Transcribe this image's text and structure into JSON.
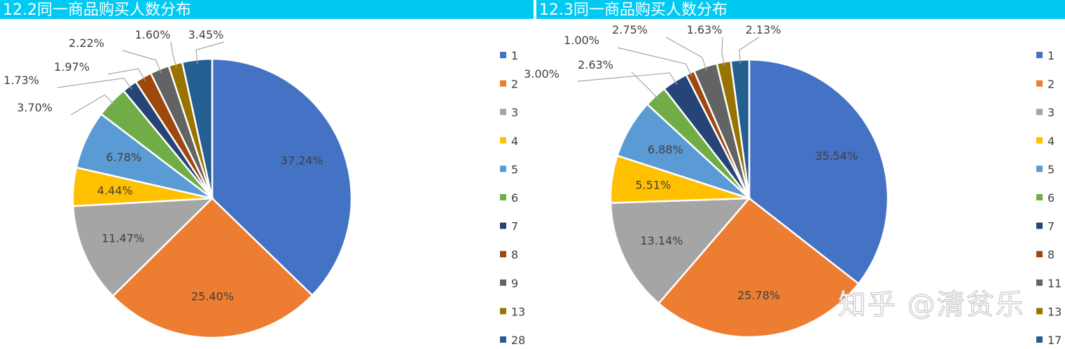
{
  "watermark": "知乎 @清贫乐",
  "chart_data": [
    {
      "type": "pie",
      "title": "12.2同一商品购买人数分布",
      "categories": [
        "1",
        "2",
        "3",
        "4",
        "5",
        "6",
        "7",
        "8",
        "9",
        "13",
        "28"
      ],
      "values": [
        37.24,
        25.4,
        11.47,
        4.44,
        6.78,
        3.7,
        1.73,
        1.97,
        2.22,
        1.6,
        3.45
      ],
      "labels": [
        "37.24%",
        "25.40%",
        "11.47%",
        "4.44%",
        "6.78%",
        "3.70%",
        "1.73%",
        "1.97%",
        "2.22%",
        "1.60%",
        "3.45%"
      ],
      "colors": [
        "#4472c4",
        "#ed7d31",
        "#a5a5a5",
        "#ffc000",
        "#5b9bd5",
        "#70ad47",
        "#264478",
        "#9e480e",
        "#636363",
        "#997300",
        "#255e91"
      ],
      "legend_position": "right"
    },
    {
      "type": "pie",
      "title": "12.3同一商品购买人数分布",
      "categories": [
        "1",
        "2",
        "3",
        "4",
        "5",
        "6",
        "7",
        "8",
        "11",
        "13",
        "17"
      ],
      "values": [
        35.54,
        25.78,
        13.14,
        5.51,
        6.88,
        2.63,
        3.0,
        1.0,
        2.75,
        1.63,
        2.13
      ],
      "labels": [
        "35.54%",
        "25.78%",
        "13.14%",
        "5.51%",
        "6.88%",
        "2.63%",
        "3.00%",
        "1.00%",
        "2.75%",
        "1.63%",
        "2.13%"
      ],
      "colors": [
        "#4472c4",
        "#ed7d31",
        "#a5a5a5",
        "#ffc000",
        "#5b9bd5",
        "#70ad47",
        "#264478",
        "#9e480e",
        "#636363",
        "#997300",
        "#255e91"
      ],
      "legend_position": "right"
    }
  ]
}
